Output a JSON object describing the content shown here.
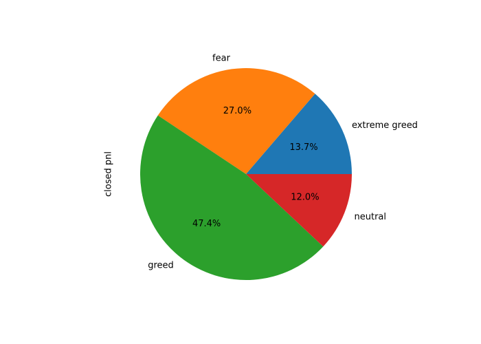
{
  "chart_data": {
    "type": "pie",
    "ylabel": "closed pnl",
    "slices": [
      {
        "label": "extreme greed",
        "percent": 13.7,
        "color": "#1f77b4"
      },
      {
        "label": "fear",
        "percent": 27.0,
        "color": "#ff7f0e"
      },
      {
        "label": "greed",
        "percent": 47.4,
        "color": "#2ca02c"
      },
      {
        "label": "neutral",
        "percent": 12.0,
        "color": "#d62728"
      }
    ],
    "pct_labels": [
      "13.7%",
      "27.0%",
      "47.4%",
      "12.0%"
    ],
    "start_angle_deg": 0,
    "direction": "counterclockwise"
  }
}
